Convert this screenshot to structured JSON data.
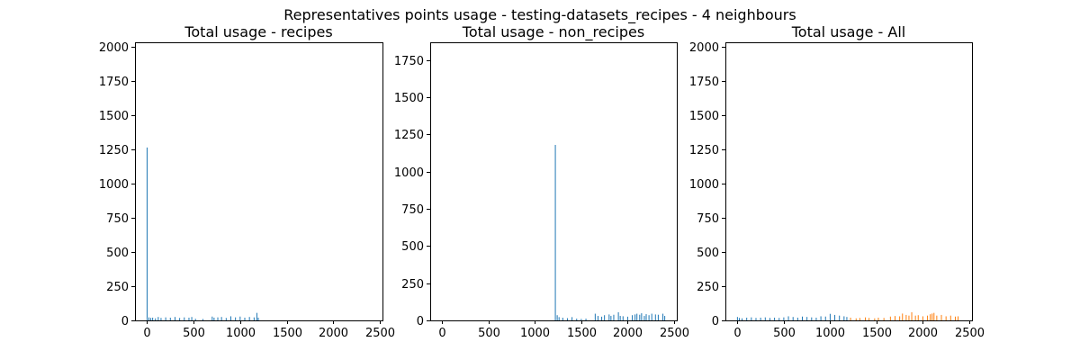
{
  "figure": {
    "suptitle": "Representatives points usage - testing-datasets_recipes - 4 neighbours"
  },
  "colors": {
    "recipes": "#1f77b4",
    "non_recipes": "#ff7f0e"
  },
  "chart_data": [
    {
      "type": "bar",
      "title": "Total usage - recipes",
      "xlabel": "",
      "ylabel": "",
      "xlim": [
        -130,
        2530
      ],
      "ylim": [
        0,
        2035
      ],
      "xticks": [
        0,
        500,
        1000,
        1500,
        2000,
        2500
      ],
      "yticks": [
        0,
        250,
        500,
        750,
        1000,
        1250,
        1500,
        1750,
        2000
      ],
      "grid": false,
      "series": [
        {
          "color": "#1f77b4",
          "x_range": [
            0,
            1200
          ],
          "values_description": "sparse small bars",
          "points": [
            [
              0,
              1265
            ],
            [
              20,
              22
            ],
            [
              40,
              18
            ],
            [
              60,
              20
            ],
            [
              90,
              15
            ],
            [
              120,
              25
            ],
            [
              150,
              18
            ],
            [
              200,
              22
            ],
            [
              250,
              20
            ],
            [
              300,
              25
            ],
            [
              350,
              18
            ],
            [
              400,
              22
            ],
            [
              450,
              20
            ],
            [
              480,
              25
            ],
            [
              520,
              12
            ],
            [
              600,
              10
            ],
            [
              700,
              28
            ],
            [
              720,
              20
            ],
            [
              760,
              22
            ],
            [
              800,
              25
            ],
            [
              850,
              18
            ],
            [
              900,
              30
            ],
            [
              950,
              22
            ],
            [
              1000,
              28
            ],
            [
              1050,
              20
            ],
            [
              1100,
              25
            ],
            [
              1150,
              22
            ],
            [
              1180,
              55
            ],
            [
              1195,
              20
            ]
          ]
        }
      ]
    },
    {
      "type": "bar",
      "title": "Total usage - non_recipes",
      "xlabel": "",
      "ylabel": "",
      "xlim": [
        -130,
        2530
      ],
      "ylim": [
        0,
        1870
      ],
      "xticks": [
        0,
        500,
        1000,
        1500,
        2000,
        2500
      ],
      "yticks": [
        0,
        250,
        500,
        750,
        1000,
        1250,
        1500,
        1750
      ],
      "grid": false,
      "series": [
        {
          "color": "#1f77b4",
          "points": [
            [
              1220,
              1180
            ],
            [
              1240,
              35
            ],
            [
              1260,
              22
            ],
            [
              1300,
              18
            ],
            [
              1350,
              15
            ],
            [
              1400,
              22
            ],
            [
              1450,
              12
            ],
            [
              1500,
              10
            ],
            [
              1550,
              12
            ],
            [
              1650,
              45
            ],
            [
              1680,
              30
            ],
            [
              1720,
              25
            ],
            [
              1750,
              35
            ],
            [
              1800,
              40
            ],
            [
              1820,
              30
            ],
            [
              1850,
              38
            ],
            [
              1900,
              55
            ],
            [
              1920,
              30
            ],
            [
              1950,
              28
            ],
            [
              2000,
              25
            ],
            [
              2050,
              35
            ],
            [
              2080,
              40
            ],
            [
              2100,
              45
            ],
            [
              2130,
              38
            ],
            [
              2150,
              48
            ],
            [
              2180,
              30
            ],
            [
              2200,
              42
            ],
            [
              2230,
              35
            ],
            [
              2260,
              45
            ],
            [
              2300,
              40
            ],
            [
              2330,
              38
            ],
            [
              2380,
              45
            ],
            [
              2400,
              30
            ]
          ]
        }
      ]
    },
    {
      "type": "bar",
      "title": "Total usage - All",
      "xlabel": "",
      "ylabel": "",
      "xlim": [
        -130,
        2530
      ],
      "ylim": [
        0,
        2035
      ],
      "xticks": [
        0,
        500,
        1000,
        1500,
        2000,
        2500
      ],
      "yticks": [
        0,
        250,
        500,
        750,
        1000,
        1250,
        1500,
        1750,
        2000
      ],
      "grid": false,
      "series": [
        {
          "color": "#1f77b4",
          "points": [
            [
              0,
              25
            ],
            [
              20,
              18
            ],
            [
              50,
              15
            ],
            [
              100,
              20
            ],
            [
              150,
              22
            ],
            [
              200,
              18
            ],
            [
              250,
              20
            ],
            [
              300,
              22
            ],
            [
              350,
              18
            ],
            [
              400,
              20
            ],
            [
              450,
              18
            ],
            [
              500,
              22
            ],
            [
              550,
              30
            ],
            [
              600,
              25
            ],
            [
              650,
              20
            ],
            [
              700,
              28
            ],
            [
              750,
              25
            ],
            [
              800,
              22
            ],
            [
              850,
              20
            ],
            [
              900,
              30
            ],
            [
              950,
              28
            ],
            [
              1000,
              48
            ],
            [
              1050,
              40
            ],
            [
              1100,
              35
            ],
            [
              1150,
              30
            ],
            [
              1180,
              25
            ]
          ]
        },
        {
          "color": "#ff7f0e",
          "points": [
            [
              1220,
              20
            ],
            [
              1280,
              15
            ],
            [
              1320,
              18
            ],
            [
              1380,
              22
            ],
            [
              1420,
              18
            ],
            [
              1480,
              15
            ],
            [
              1520,
              20
            ],
            [
              1580,
              18
            ],
            [
              1650,
              28
            ],
            [
              1700,
              32
            ],
            [
              1750,
              30
            ],
            [
              1780,
              50
            ],
            [
              1820,
              40
            ],
            [
              1850,
              35
            ],
            [
              1880,
              60
            ],
            [
              1920,
              35
            ],
            [
              1950,
              38
            ],
            [
              2000,
              30
            ],
            [
              2050,
              35
            ],
            [
              2080,
              45
            ],
            [
              2100,
              50
            ],
            [
              2120,
              55
            ],
            [
              2150,
              35
            ],
            [
              2200,
              40
            ],
            [
              2250,
              30
            ],
            [
              2300,
              35
            ],
            [
              2350,
              28
            ],
            [
              2380,
              30
            ]
          ]
        }
      ]
    }
  ]
}
